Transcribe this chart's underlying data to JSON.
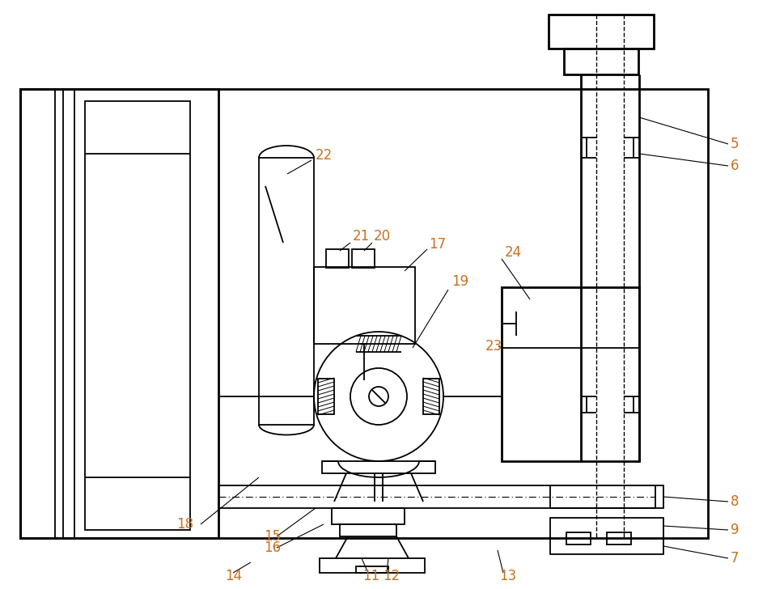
{
  "bg_color": "#ffffff",
  "line_color": "#000000",
  "label_color": "#c87020",
  "label_fontsize": 12,
  "lw": 1.3,
  "tlw": 2.0,
  "figsize": [
    9.69,
    7.28
  ],
  "dpi": 100
}
